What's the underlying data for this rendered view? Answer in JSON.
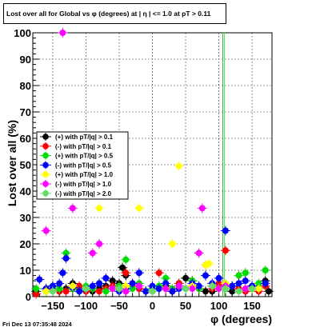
{
  "chart_data": {
    "type": "scatter",
    "title": "Lost over all for Global vs φ (degrees) at |  η  | <= 1.0 at pT > 0.11",
    "xlabel": "φ (degrees)",
    "ylabel": "Lost over all (%)",
    "xlim": [
      -180,
      180
    ],
    "ylim": [
      0,
      100
    ],
    "x_ticks": [
      -150,
      -100,
      -50,
      0,
      50,
      100,
      150
    ],
    "x_tick_labels": [
      "−150",
      "−100",
      "−50",
      "0",
      "50",
      "100",
      "150"
    ],
    "y_ticks": [
      0,
      10,
      20,
      30,
      40,
      50,
      60,
      70,
      80,
      90,
      100
    ],
    "y_tick_labels": [
      "0",
      "10",
      "20",
      "30",
      "40",
      "50",
      "60",
      "70",
      "80",
      "90",
      "100"
    ],
    "grid": true,
    "legend_position": "left-middle",
    "series": [
      {
        "name": "(+) with pT/|q| > 0.1",
        "color": "#000000",
        "marker": "circle",
        "x": [
          -175,
          -160,
          -150,
          -140,
          -130,
          -120,
          -110,
          -100,
          -90,
          -80,
          -70,
          -60,
          -50,
          -45,
          -40,
          -30,
          -20,
          -10,
          0,
          10,
          20,
          30,
          40,
          50,
          60,
          70,
          80,
          90,
          100,
          110,
          120,
          130,
          140,
          150,
          160,
          170,
          175
        ],
        "y": [
          2,
          3,
          4,
          2,
          3,
          5,
          3,
          2,
          2,
          3,
          4,
          6,
          5,
          11,
          8,
          5,
          3,
          2,
          3,
          3,
          4,
          2,
          5,
          7,
          6,
          3,
          2,
          2,
          4,
          3,
          2,
          3,
          2,
          4,
          3,
          6,
          2
        ]
      },
      {
        "name": "(-) with pT/|q| > 0.1",
        "color": "#ff0000",
        "marker": "circle",
        "x": [
          -175,
          -160,
          -150,
          -140,
          -130,
          -120,
          -110,
          -100,
          -90,
          -80,
          -70,
          -60,
          -50,
          -40,
          -30,
          -20,
          -10,
          0,
          10,
          20,
          30,
          40,
          50,
          60,
          70,
          80,
          90,
          100,
          110,
          120,
          130,
          140,
          150,
          160,
          170
        ],
        "y": [
          1,
          2,
          3,
          2,
          2,
          3,
          4,
          2,
          3,
          2,
          3,
          4,
          3,
          9,
          4,
          3,
          2,
          2,
          9,
          3,
          2,
          5,
          3,
          4,
          3,
          12,
          3,
          5,
          17.5,
          4,
          3,
          2,
          3,
          2,
          4
        ]
      },
      {
        "name": "(+) with pT/|q| > 0.5",
        "color": "#00dd00",
        "marker": "circle",
        "x": [
          -175,
          -160,
          -150,
          -140,
          -130,
          -120,
          -110,
          -100,
          -90,
          -80,
          -70,
          -60,
          -50,
          -40,
          -30,
          -20,
          -10,
          0,
          10,
          20,
          30,
          40,
          50,
          60,
          70,
          80,
          90,
          100,
          110,
          120,
          130,
          140,
          150,
          160,
          170
        ],
        "y": [
          3,
          2,
          4,
          3,
          16.5,
          3,
          2,
          4,
          3,
          5,
          2,
          3,
          4,
          14,
          3,
          5,
          2,
          3,
          4,
          7,
          3,
          4,
          3,
          6,
          3,
          8,
          4,
          3,
          5,
          4,
          8,
          9,
          3,
          5,
          10
        ]
      },
      {
        "name": "(-) with pT/|q| > 0.5",
        "color": "#0000ff",
        "marker": "circle",
        "x": [
          -170,
          -160,
          -150,
          -140,
          -135,
          -130,
          -120,
          -110,
          -100,
          -90,
          -80,
          -70,
          -60,
          -50,
          -40,
          -30,
          -20,
          -10,
          0,
          10,
          20,
          30,
          40,
          50,
          60,
          70,
          80,
          90,
          100,
          110,
          120,
          130,
          140,
          150,
          160,
          170
        ],
        "y": [
          6.5,
          3,
          4,
          5,
          9,
          14.5,
          3.5,
          2,
          3,
          4,
          5,
          7,
          3,
          2,
          3,
          5,
          9,
          2,
          4,
          3,
          5,
          2,
          3,
          3,
          5,
          4,
          8,
          5,
          7,
          25,
          4,
          5,
          6,
          4,
          3,
          5
        ]
      },
      {
        "name": "(+) with pT/|q| > 1.0",
        "color": "#ffff00",
        "marker": "circle",
        "x": [
          -160,
          -120,
          -80,
          -60,
          -40,
          -20,
          0,
          20,
          30,
          40,
          60,
          80,
          85,
          100,
          110,
          140,
          160
        ],
        "y": [
          2,
          4,
          33.5,
          3,
          4,
          33.5,
          2,
          3,
          20,
          49.5,
          4,
          12,
          12.5,
          3,
          5,
          3,
          3
        ]
      },
      {
        "name": "(-) with pT/|q| > 1.0",
        "color": "#ff00ff",
        "marker": "circle",
        "x": [
          -160,
          -135,
          -120,
          -100,
          -90,
          -80,
          -60,
          -40,
          -20,
          0,
          20,
          40,
          60,
          70,
          75,
          90,
          100,
          110,
          140
        ],
        "y": [
          25,
          100,
          33.5,
          3,
          16.5,
          20,
          3,
          2,
          4,
          2,
          3,
          4,
          3,
          16.5,
          33.5,
          4,
          3,
          4,
          3
        ]
      },
      {
        "name": "(-) with pT/|q| > 2.0",
        "color": "#66dd66",
        "marker": "circle",
        "x": [
          -150,
          -100,
          -50,
          0,
          50,
          90,
          110,
          130,
          150
        ],
        "y": [
          2,
          3,
          3,
          2,
          3,
          4,
          3,
          2,
          3
        ]
      }
    ]
  }
}
